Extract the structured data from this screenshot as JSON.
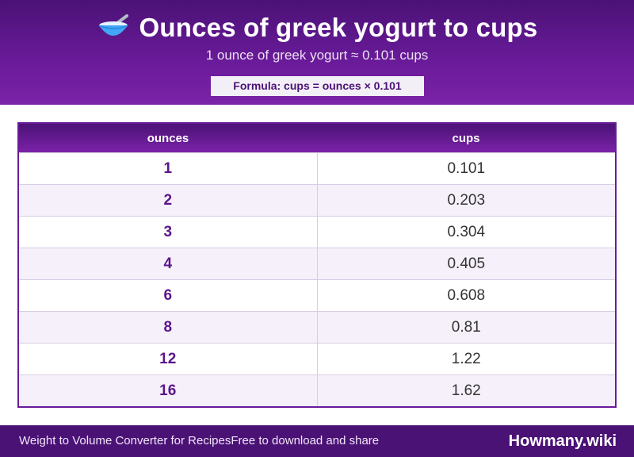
{
  "header": {
    "title": "Ounces of greek yogurt to cups",
    "icon": "bowl-with-spoon-icon",
    "subtitle": "1 ounce of greek yogurt ≈ 0.101 cups",
    "formula": "Formula: cups = ounces × 0.101"
  },
  "table": {
    "columns": [
      "ounces",
      "cups"
    ],
    "rows": [
      {
        "ounces": "1",
        "cups": "0.101"
      },
      {
        "ounces": "2",
        "cups": "0.203"
      },
      {
        "ounces": "3",
        "cups": "0.304"
      },
      {
        "ounces": "4",
        "cups": "0.405"
      },
      {
        "ounces": "6",
        "cups": "0.608"
      },
      {
        "ounces": "8",
        "cups": "0.81"
      },
      {
        "ounces": "12",
        "cups": "1.22"
      },
      {
        "ounces": "16",
        "cups": "1.62"
      }
    ]
  },
  "footer": {
    "left_text_1": "Weight to Volume Converter for Recipes",
    "left_text_2": "Free to download and share",
    "brand": "Howmany.wiki"
  },
  "colors": {
    "primary": "#6a1b9a",
    "primary_dark": "#4b1276",
    "row_alt": "#f5f0fa"
  }
}
